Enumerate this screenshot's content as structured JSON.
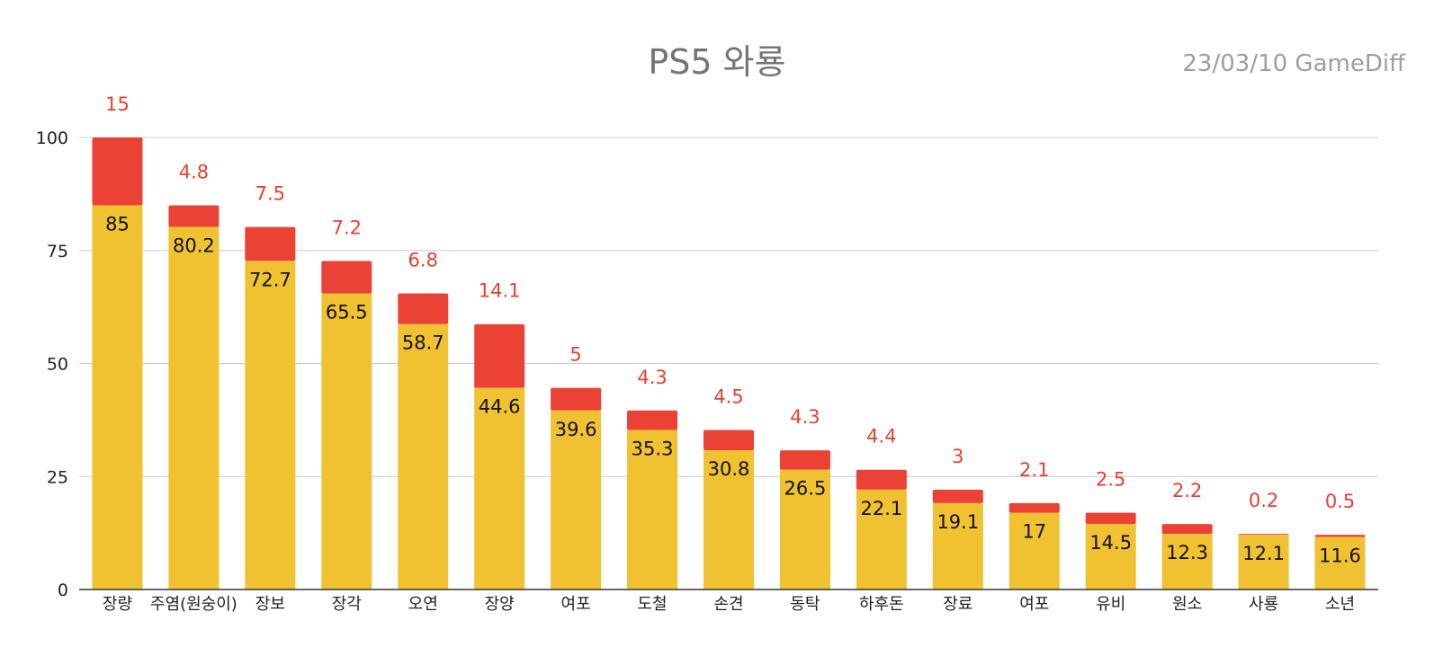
{
  "chart_data": {
    "type": "bar",
    "stacked": true,
    "title": "PS5 와룡",
    "subtitle": "23/03/10  GameDiff",
    "xlabel": "",
    "ylabel": "",
    "ylim": [
      0,
      100
    ],
    "yticks": [
      0,
      25,
      50,
      75,
      100
    ],
    "grid": true,
    "categories": [
      "장량",
      "주염(원숭이)",
      "장보",
      "장각",
      "오연",
      "장양",
      "여포",
      "도철",
      "손견",
      "동탁",
      "하후돈",
      "장료",
      "여포",
      "유비",
      "원소",
      "사룡",
      "소년"
    ],
    "series": [
      {
        "color": "#F0C131",
        "values": [
          85,
          80.2,
          72.7,
          65.5,
          58.7,
          44.6,
          39.6,
          35.3,
          30.8,
          26.5,
          22.1,
          19.1,
          17,
          14.5,
          12.3,
          12.1,
          11.6
        ]
      },
      {
        "color": "#EA4335",
        "values": [
          15,
          4.8,
          7.5,
          7.2,
          6.8,
          14.1,
          5,
          4.3,
          4.5,
          4.3,
          4.4,
          3,
          2.1,
          2.5,
          2.2,
          0.2,
          0.5
        ]
      }
    ],
    "top_label_color": "#E8402F"
  }
}
